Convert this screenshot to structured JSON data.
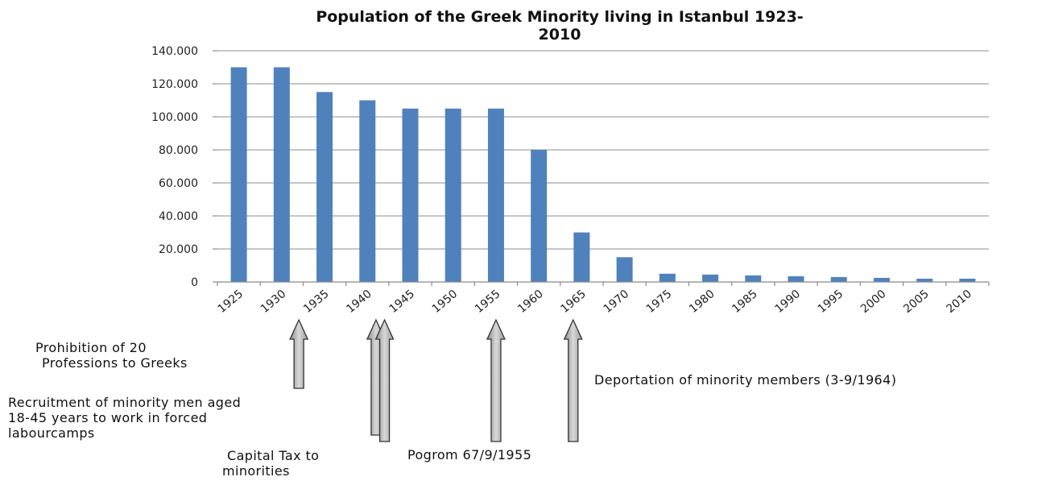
{
  "chart_data": {
    "type": "bar",
    "title_lines": [
      "Population of the Greek Minority living in Istanbul 1923-",
      "2010"
    ],
    "categories": [
      "1925",
      "1930",
      "1935",
      "1940",
      "1945",
      "1950",
      "1955",
      "1960",
      "1965",
      "1970",
      "1975",
      "1980",
      "1985",
      "1990",
      "1995",
      "2000",
      "2005",
      "2010"
    ],
    "values": [
      130000,
      130000,
      115000,
      110000,
      105000,
      105000,
      105000,
      80000,
      30000,
      15000,
      5000,
      4500,
      4000,
      3500,
      3000,
      2500,
      2000,
      2000
    ],
    "y_tick_labels": [
      "0",
      "20.000",
      "40.000",
      "60.000",
      "80.000",
      "100.000",
      "120.000",
      "140.000"
    ],
    "ylim": [
      0,
      140000
    ],
    "y_step": 20000,
    "grid": true,
    "legend": "none",
    "bar_color": "#4f81bd",
    "annotations": [
      {
        "lines": [
          "Prohibition of 20",
          "Professions to Greeks"
        ],
        "arrow_at": "1932"
      },
      {
        "lines": [
          "Recruitment of minority men aged",
          "18-45 years to work in forced",
          "labourcamps"
        ],
        "arrow_at": "1941"
      },
      {
        "lines": [
          "Capital Tax to",
          "minorities"
        ],
        "arrow_at": "1942"
      },
      {
        "lines": [
          "Pogrom 67/9/1955"
        ],
        "arrow_at": "1955"
      },
      {
        "lines": [
          "Deportation of minority members (3-9/1964)"
        ],
        "arrow_at": "1964"
      }
    ]
  }
}
